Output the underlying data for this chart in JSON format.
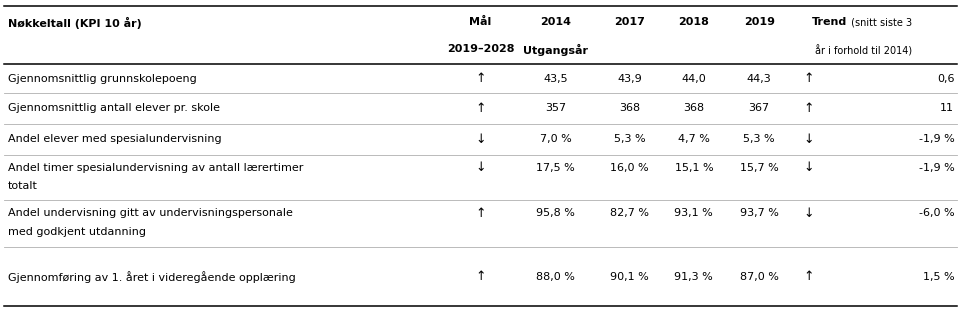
{
  "title": "Nøkkeltall (KPI 10 år)",
  "rows": [
    {
      "label": "Gjennomsnittlig grunnskolepoeng",
      "label2": "",
      "mal_arrow": "↑",
      "v2014": "43,5",
      "v2017": "43,9",
      "v2018": "44,0",
      "v2019": "44,3",
      "trend_arrow": "↑",
      "trend_val": "0,6",
      "multiline": false
    },
    {
      "label": "Gjennomsnittlig antall elever pr. skole",
      "label2": "",
      "mal_arrow": "↑",
      "v2014": "357",
      "v2017": "368",
      "v2018": "368",
      "v2019": "367",
      "trend_arrow": "↑",
      "trend_val": "11",
      "multiline": false
    },
    {
      "label": "Andel elever med spesialundervisning",
      "label2": "",
      "mal_arrow": "↓",
      "v2014": "7,0 %",
      "v2017": "5,3 %",
      "v2018": "4,7 %",
      "v2019": "5,3 %",
      "trend_arrow": "↓",
      "trend_val": "-1,9 %",
      "multiline": false
    },
    {
      "label": "Andel timer spesialundervisning av antall lærertimer",
      "label2": "totalt",
      "mal_arrow": "↓",
      "v2014": "17,5 %",
      "v2017": "16,0 %",
      "v2018": "15,1 %",
      "v2019": "15,7 %",
      "trend_arrow": "↓",
      "trend_val": "-1,9 %",
      "multiline": true
    },
    {
      "label": "Andel undervisning gitt av undervisningspersonale",
      "label2": "med godkjent utdanning",
      "mal_arrow": "↑",
      "v2014": "95,8 %",
      "v2017": "82,7 %",
      "v2018": "93,1 %",
      "v2019": "93,7 %",
      "trend_arrow": "↓",
      "trend_val": "-6,0 %",
      "multiline": true
    },
    {
      "label": "Gjennomføring av 1. året i videregående opplæring",
      "label2": "",
      "mal_arrow": "↑",
      "v2014": "88,0 %",
      "v2017": "90,1 %",
      "v2018": "91,3 %",
      "v2019": "87,0 %",
      "trend_arrow": "↑",
      "trend_val": "1,5 %",
      "multiline": false
    }
  ],
  "col_x": {
    "label": 0.008,
    "mal": 0.5,
    "v2014": 0.578,
    "v2017": 0.655,
    "v2018": 0.722,
    "v2019": 0.79,
    "trend_arrow": 0.842,
    "trend_val": 0.993
  },
  "bg_color": "#ffffff",
  "text_color": "#000000",
  "row_line_color": "#b0b0b0",
  "font_size": 8.0,
  "arrow_font_size": 9.0
}
